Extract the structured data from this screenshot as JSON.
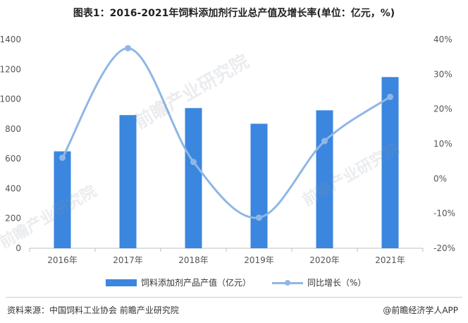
{
  "title": "图表1：2016-2021年饲料添加剂行业总产值及增长率(单位：亿元，%)",
  "chart_data": {
    "type": "bar+line",
    "categories": [
      "2016年",
      "2017年",
      "2018年",
      "2019年",
      "2020年",
      "2021年"
    ],
    "series": [
      {
        "name": "饲料添加剂产品产值（亿元）",
        "type": "bar",
        "axis": "left",
        "values": [
          650,
          893,
          940,
          835,
          925,
          1148
        ]
      },
      {
        "name": "同比增长（%）",
        "type": "line",
        "axis": "right",
        "smooth": true,
        "values": [
          6.0,
          37.5,
          4.8,
          -11.2,
          10.8,
          23.5
        ]
      }
    ],
    "y_left": {
      "min": 0,
      "max": 1400,
      "step": 200,
      "ticks": [
        "0",
        "200",
        "400",
        "600",
        "800",
        "1000",
        "1200",
        "1400"
      ]
    },
    "y_right": {
      "min": -20,
      "max": 40,
      "step": 10,
      "ticks": [
        "-20%",
        "-10%",
        "0%",
        "10%",
        "20%",
        "30%",
        "40%"
      ]
    },
    "grid": false,
    "colors": {
      "bar": "#3b86df",
      "line": "#8fb7e6",
      "axis": "#bfbfbf"
    }
  },
  "legend": {
    "bar_label": "饲料添加剂产品产值（亿元）",
    "line_label": "同比增长（%）"
  },
  "watermark": "前瞻产业研究院",
  "footer": {
    "source": "资料来源：中国饲料工业协会 前瞻产业研究院",
    "brand": "@前瞻经济学人APP"
  }
}
